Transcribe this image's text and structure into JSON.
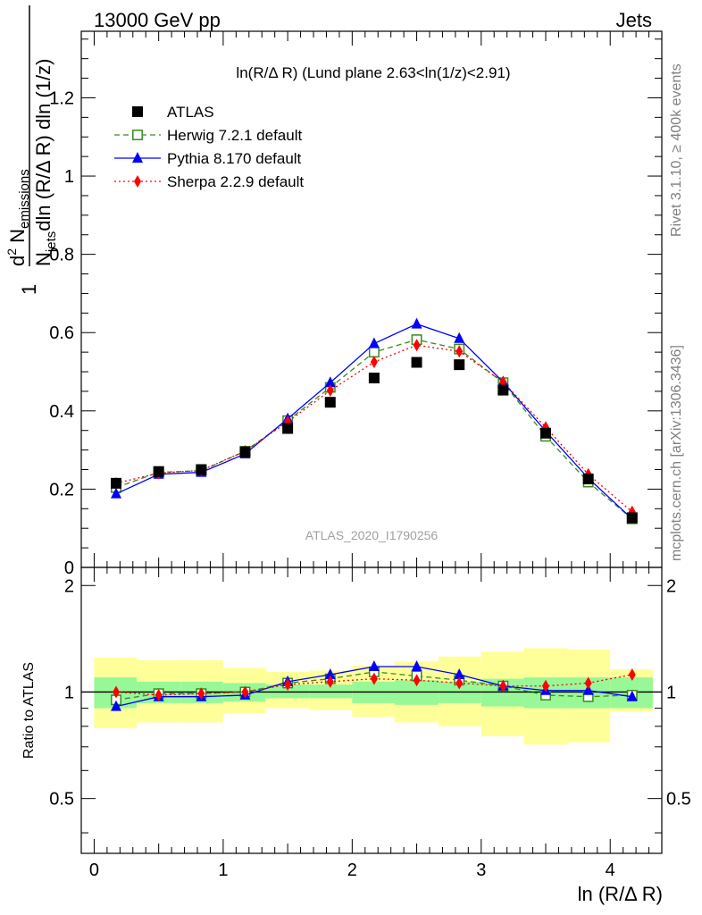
{
  "header": {
    "left": "13000 GeV pp",
    "right": "Jets"
  },
  "side_labels": {
    "rivet": "Rivet 3.1.10, ≥ 400k events",
    "mcplots": "mcplots.cern.ch [arXiv:1306.3436]"
  },
  "watermark": "ATLAS_2020_I1790256",
  "chart_data": [
    {
      "type": "line",
      "panel": "main",
      "title": "ln(R/Δ R) (Lund plane 2.63<ln(1/z)<2.91)",
      "xlabel": "",
      "ylabel": "1/N_jets d²N_emissions / dln(R/Δ R) dln(1/z)",
      "ylabel_parts": {
        "prefix": "1",
        "njets": "N",
        "njets_sub": "jets",
        "num_d": "d",
        "num_sup": "2",
        "num_n": " N",
        "num_sub": "emissions",
        "den": "dln (R/Δ R) dln (1/z)"
      },
      "xlim": [
        -0.1,
        4.4
      ],
      "ylim": [
        0,
        1.37
      ],
      "ytick_values": [
        0,
        0.2,
        0.4,
        0.6,
        0.8,
        1,
        1.2
      ],
      "ytick_labels": [
        "0",
        "0.2",
        "0.4",
        "0.6",
        "0.8",
        "1",
        "1.2"
      ],
      "legend_position": "top-left",
      "x": [
        0.17,
        0.5,
        0.83,
        1.17,
        1.5,
        1.83,
        2.17,
        2.5,
        2.83,
        3.17,
        3.5,
        3.83,
        4.17
      ],
      "series": [
        {
          "name": "ATLAS",
          "color": "#000000",
          "marker": "square-filled",
          "line": "none",
          "values": [
            0.215,
            0.245,
            0.25,
            0.295,
            0.355,
            0.422,
            0.484,
            0.524,
            0.518,
            0.453,
            0.343,
            0.226,
            0.127
          ]
        },
        {
          "name": "Herwig 7.2.1 default",
          "color": "#3a8c1c",
          "marker": "square-open",
          "line": "dashed",
          "values": [
            0.204,
            0.243,
            0.247,
            0.297,
            0.375,
            0.46,
            0.55,
            0.582,
            0.558,
            0.472,
            0.335,
            0.218,
            0.124
          ]
        },
        {
          "name": "Pythia 8.170 default",
          "color": "#0000ff",
          "marker": "triangle-filled",
          "line": "solid",
          "values": [
            0.188,
            0.238,
            0.243,
            0.29,
            0.38,
            0.472,
            0.572,
            0.622,
            0.585,
            0.474,
            0.348,
            0.228,
            0.124
          ]
        },
        {
          "name": "Sherpa 2.2.9 default",
          "color": "#ff0000",
          "marker": "diamond-filled",
          "line": "dotted",
          "values": [
            0.215,
            0.241,
            0.248,
            0.297,
            0.372,
            0.452,
            0.525,
            0.568,
            0.552,
            0.474,
            0.358,
            0.238,
            0.142
          ]
        }
      ]
    },
    {
      "type": "line",
      "panel": "ratio",
      "xlabel": "ln (R/Δ R)",
      "ylabel": "Ratio to ATLAS",
      "xlim": [
        -0.1,
        4.4
      ],
      "ylim": [
        0.35,
        2.25
      ],
      "log_y": true,
      "xtick_values": [
        0,
        1,
        2,
        3,
        4
      ],
      "xtick_labels": [
        "0",
        "1",
        "2",
        "3",
        "4"
      ],
      "ytick_values": [
        0.5,
        1,
        2
      ],
      "ytick_labels": [
        "0.5",
        "1",
        "2"
      ],
      "bins": [
        [
          0,
          0.33
        ],
        [
          0.33,
          0.67
        ],
        [
          0.67,
          1.0
        ],
        [
          1.0,
          1.33
        ],
        [
          1.33,
          1.67
        ],
        [
          1.67,
          2.0
        ],
        [
          2.0,
          2.33
        ],
        [
          2.33,
          2.67
        ],
        [
          2.67,
          3.0
        ],
        [
          3.0,
          3.33
        ],
        [
          3.33,
          3.67
        ],
        [
          3.67,
          4.0
        ],
        [
          4.0,
          4.33
        ]
      ],
      "band_inner": {
        "color": "#98f898",
        "lower": [
          0.9,
          0.93,
          0.93,
          0.94,
          0.96,
          0.96,
          0.93,
          0.92,
          0.93,
          0.91,
          0.9,
          0.9,
          0.9
        ],
        "upper": [
          1.1,
          1.07,
          1.07,
          1.06,
          1.05,
          1.05,
          1.07,
          1.08,
          1.07,
          1.09,
          1.1,
          1.1,
          1.1
        ]
      },
      "band_outer": {
        "color": "#ffff99",
        "lower": [
          0.79,
          0.82,
          0.82,
          0.87,
          0.9,
          0.89,
          0.85,
          0.82,
          0.8,
          0.75,
          0.71,
          0.72,
          0.88
        ],
        "upper": [
          1.25,
          1.23,
          1.23,
          1.17,
          1.14,
          1.15,
          1.19,
          1.22,
          1.26,
          1.3,
          1.33,
          1.32,
          1.16
        ]
      },
      "reference_line": 1,
      "x": [
        0.17,
        0.5,
        0.83,
        1.17,
        1.5,
        1.83,
        2.17,
        2.5,
        2.83,
        3.17,
        3.5,
        3.83,
        4.17
      ],
      "series": [
        {
          "name": "Herwig 7.2.1 default",
          "color": "#3a8c1c",
          "marker": "square-open",
          "line": "dashed",
          "values": [
            0.95,
            0.99,
            0.99,
            1.0,
            1.06,
            1.09,
            1.14,
            1.11,
            1.08,
            1.04,
            0.98,
            0.97,
            0.98
          ]
        },
        {
          "name": "Pythia 8.170 default",
          "color": "#0000ff",
          "marker": "triangle-filled",
          "line": "solid",
          "values": [
            0.91,
            0.97,
            0.97,
            0.98,
            1.07,
            1.12,
            1.18,
            1.18,
            1.12,
            1.04,
            1.01,
            1.01,
            0.97
          ]
        },
        {
          "name": "Sherpa 2.2.9 default",
          "color": "#ff0000",
          "marker": "diamond-filled",
          "line": "dotted",
          "values": [
            1.0,
            0.98,
            0.99,
            1.0,
            1.05,
            1.07,
            1.09,
            1.08,
            1.06,
            1.04,
            1.04,
            1.06,
            1.12
          ]
        }
      ]
    }
  ]
}
